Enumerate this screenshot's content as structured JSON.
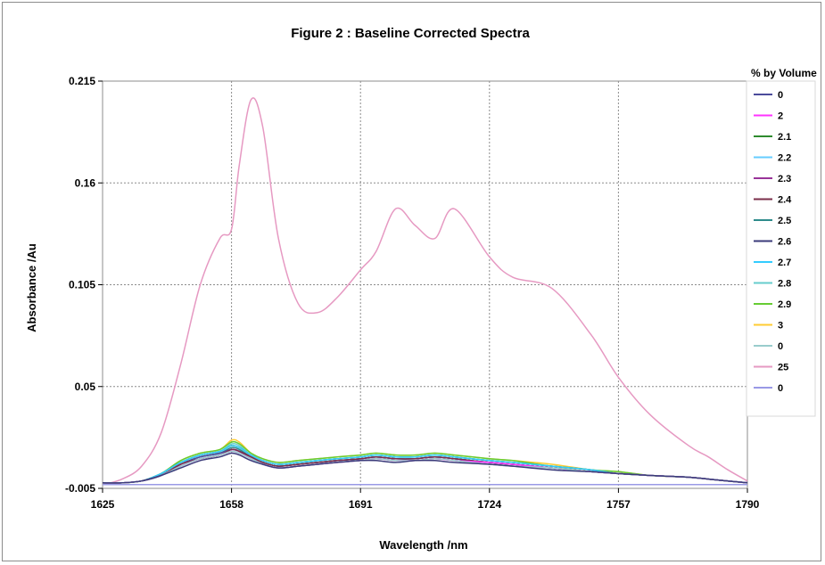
{
  "chart_data": {
    "type": "line",
    "title": "Figure 2 :  Baseline Corrected Spectra",
    "xlabel": "Wavelength /nm",
    "ylabel": "Absorbance /Au",
    "xlim": [
      1625,
      1790
    ],
    "ylim": [
      -0.005,
      0.215
    ],
    "x_ticks": [
      "1625",
      "1658",
      "1691",
      "1724",
      "1757",
      "1790"
    ],
    "y_ticks": [
      "-0.005",
      "0.05",
      "0.105",
      "0.16",
      "0.215"
    ],
    "grid": true,
    "legend_title": "% by Volume",
    "legend_position": "right",
    "x": [
      1625,
      1630,
      1635,
      1640,
      1645,
      1650,
      1655,
      1658,
      1660,
      1663,
      1666,
      1670,
      1675,
      1680,
      1685,
      1691,
      1695,
      1700,
      1705,
      1710,
      1715,
      1724,
      1730,
      1740,
      1750,
      1757,
      1765,
      1775,
      1780,
      1785,
      1790
    ],
    "series": [
      {
        "name": "0",
        "color": "#4b4b9b",
        "values": [
          -0.002,
          -0.002,
          -0.001,
          0.002,
          0.008,
          0.012,
          0.014,
          0.016,
          0.015,
          0.012,
          0.009,
          0.007,
          0.008,
          0.009,
          0.01,
          0.011,
          0.012,
          0.011,
          0.011,
          0.012,
          0.011,
          0.009,
          0.008,
          0.006,
          0.004,
          0.003,
          0.002,
          0.001,
          0.0,
          -0.001,
          -0.002
        ]
      },
      {
        "name": "2",
        "color": "#ff33ff",
        "values": [
          -0.002,
          -0.002,
          -0.001,
          0.002,
          0.007,
          0.011,
          0.013,
          0.015,
          0.014,
          0.011,
          0.008,
          0.006,
          0.007,
          0.008,
          0.009,
          0.01,
          0.011,
          0.01,
          0.01,
          0.011,
          0.01,
          0.009,
          0.008,
          0.006,
          0.004,
          0.003,
          0.002,
          0.001,
          0.0,
          -0.001,
          -0.002
        ]
      },
      {
        "name": "2.1",
        "color": "#2e8b2e",
        "values": [
          -0.002,
          -0.002,
          -0.001,
          0.003,
          0.009,
          0.013,
          0.015,
          0.018,
          0.017,
          0.013,
          0.01,
          0.008,
          0.009,
          0.01,
          0.011,
          0.012,
          0.013,
          0.012,
          0.012,
          0.013,
          0.012,
          0.01,
          0.009,
          0.007,
          0.005,
          0.003,
          0.002,
          0.001,
          0.0,
          -0.001,
          -0.002
        ]
      },
      {
        "name": "2.2",
        "color": "#66ccff",
        "values": [
          -0.002,
          -0.002,
          -0.001,
          0.002,
          0.008,
          0.012,
          0.014,
          0.017,
          0.016,
          0.012,
          0.009,
          0.007,
          0.008,
          0.009,
          0.01,
          0.011,
          0.012,
          0.011,
          0.011,
          0.012,
          0.011,
          0.009,
          0.008,
          0.006,
          0.004,
          0.003,
          0.002,
          0.001,
          0.0,
          -0.001,
          -0.002
        ]
      },
      {
        "name": "2.3",
        "color": "#993399",
        "values": [
          -0.002,
          -0.002,
          -0.001,
          0.002,
          0.007,
          0.011,
          0.013,
          0.016,
          0.015,
          0.011,
          0.008,
          0.006,
          0.007,
          0.008,
          0.009,
          0.01,
          0.011,
          0.01,
          0.01,
          0.011,
          0.01,
          0.008,
          0.007,
          0.006,
          0.004,
          0.003,
          0.002,
          0.001,
          0.0,
          -0.001,
          -0.002
        ]
      },
      {
        "name": "2.4",
        "color": "#7a2e4a",
        "values": [
          -0.002,
          -0.002,
          -0.001,
          0.002,
          0.008,
          0.011,
          0.013,
          0.016,
          0.015,
          0.012,
          0.009,
          0.007,
          0.008,
          0.009,
          0.01,
          0.011,
          0.012,
          0.011,
          0.011,
          0.012,
          0.011,
          0.009,
          0.008,
          0.006,
          0.004,
          0.003,
          0.002,
          0.001,
          0.0,
          -0.001,
          -0.002
        ]
      },
      {
        "name": "2.5",
        "color": "#2e8b8b",
        "values": [
          -0.002,
          -0.002,
          -0.001,
          0.002,
          0.008,
          0.012,
          0.014,
          0.017,
          0.016,
          0.012,
          0.009,
          0.007,
          0.008,
          0.009,
          0.01,
          0.011,
          0.012,
          0.011,
          0.011,
          0.012,
          0.011,
          0.009,
          0.008,
          0.006,
          0.004,
          0.003,
          0.002,
          0.001,
          0.0,
          -0.001,
          -0.002
        ]
      },
      {
        "name": "2.6",
        "color": "#3b3b7a",
        "values": [
          -0.002,
          -0.002,
          -0.001,
          0.002,
          0.006,
          0.01,
          0.012,
          0.014,
          0.013,
          0.01,
          0.008,
          0.006,
          0.007,
          0.008,
          0.009,
          0.01,
          0.01,
          0.009,
          0.01,
          0.01,
          0.009,
          0.008,
          0.007,
          0.005,
          0.004,
          0.003,
          0.002,
          0.001,
          0.0,
          -0.001,
          -0.002
        ]
      },
      {
        "name": "2.7",
        "color": "#33ccff",
        "values": [
          -0.002,
          -0.002,
          -0.001,
          0.003,
          0.009,
          0.013,
          0.015,
          0.018,
          0.017,
          0.013,
          0.01,
          0.008,
          0.009,
          0.01,
          0.011,
          0.012,
          0.013,
          0.012,
          0.012,
          0.013,
          0.012,
          0.01,
          0.009,
          0.007,
          0.005,
          0.003,
          0.002,
          0.001,
          0.0,
          -0.001,
          -0.002
        ]
      },
      {
        "name": "2.8",
        "color": "#66cccc",
        "values": [
          -0.002,
          -0.002,
          -0.001,
          0.003,
          0.009,
          0.013,
          0.015,
          0.019,
          0.018,
          0.013,
          0.01,
          0.008,
          0.009,
          0.01,
          0.011,
          0.012,
          0.013,
          0.012,
          0.012,
          0.013,
          0.012,
          0.01,
          0.009,
          0.007,
          0.005,
          0.003,
          0.002,
          0.001,
          0.0,
          -0.001,
          -0.002
        ]
      },
      {
        "name": "2.9",
        "color": "#66cc33",
        "values": [
          -0.002,
          -0.002,
          -0.001,
          0.003,
          0.01,
          0.014,
          0.016,
          0.02,
          0.019,
          0.014,
          0.011,
          0.009,
          0.01,
          0.011,
          0.012,
          0.013,
          0.014,
          0.013,
          0.013,
          0.014,
          0.013,
          0.011,
          0.01,
          0.007,
          0.005,
          0.004,
          0.002,
          0.001,
          0.0,
          -0.001,
          -0.002
        ]
      },
      {
        "name": "3",
        "color": "#ffcc33",
        "values": [
          -0.002,
          -0.002,
          -0.001,
          0.003,
          0.01,
          0.014,
          0.016,
          0.021,
          0.02,
          0.014,
          0.011,
          0.009,
          0.01,
          0.011,
          0.012,
          0.013,
          0.014,
          0.013,
          0.013,
          0.014,
          0.013,
          0.011,
          0.01,
          0.008,
          0.005,
          0.004,
          0.002,
          0.001,
          0.0,
          -0.001,
          -0.002
        ]
      },
      {
        "name": "0",
        "color": "#99cccc",
        "values": [
          -0.002,
          -0.002,
          -0.001,
          0.002,
          0.007,
          0.011,
          0.013,
          0.015,
          0.014,
          0.011,
          0.008,
          0.006,
          0.007,
          0.008,
          0.009,
          0.01,
          0.011,
          0.01,
          0.01,
          0.011,
          0.01,
          0.008,
          0.007,
          0.006,
          0.004,
          0.003,
          0.002,
          0.001,
          0.0,
          -0.001,
          -0.002
        ]
      },
      {
        "name": "25",
        "color": "#e699c2",
        "values": [
          -0.003,
          0.0,
          0.007,
          0.025,
          0.062,
          0.105,
          0.13,
          0.135,
          0.17,
          0.205,
          0.19,
          0.13,
          0.095,
          0.09,
          0.098,
          0.113,
          0.123,
          0.146,
          0.137,
          0.13,
          0.146,
          0.12,
          0.109,
          0.103,
          0.078,
          0.055,
          0.035,
          0.018,
          0.012,
          0.005,
          -0.001
        ]
      },
      {
        "name": "0",
        "color": "#9999e6",
        "values": [
          -0.003,
          -0.003,
          -0.003,
          -0.003,
          -0.003,
          -0.003,
          -0.003,
          -0.003,
          -0.003,
          -0.003,
          -0.003,
          -0.003,
          -0.003,
          -0.003,
          -0.003,
          -0.003,
          -0.003,
          -0.003,
          -0.003,
          -0.003,
          -0.003,
          -0.003,
          -0.003,
          -0.003,
          -0.003,
          -0.003,
          -0.003,
          -0.003,
          -0.003,
          -0.003,
          -0.003
        ]
      }
    ]
  }
}
